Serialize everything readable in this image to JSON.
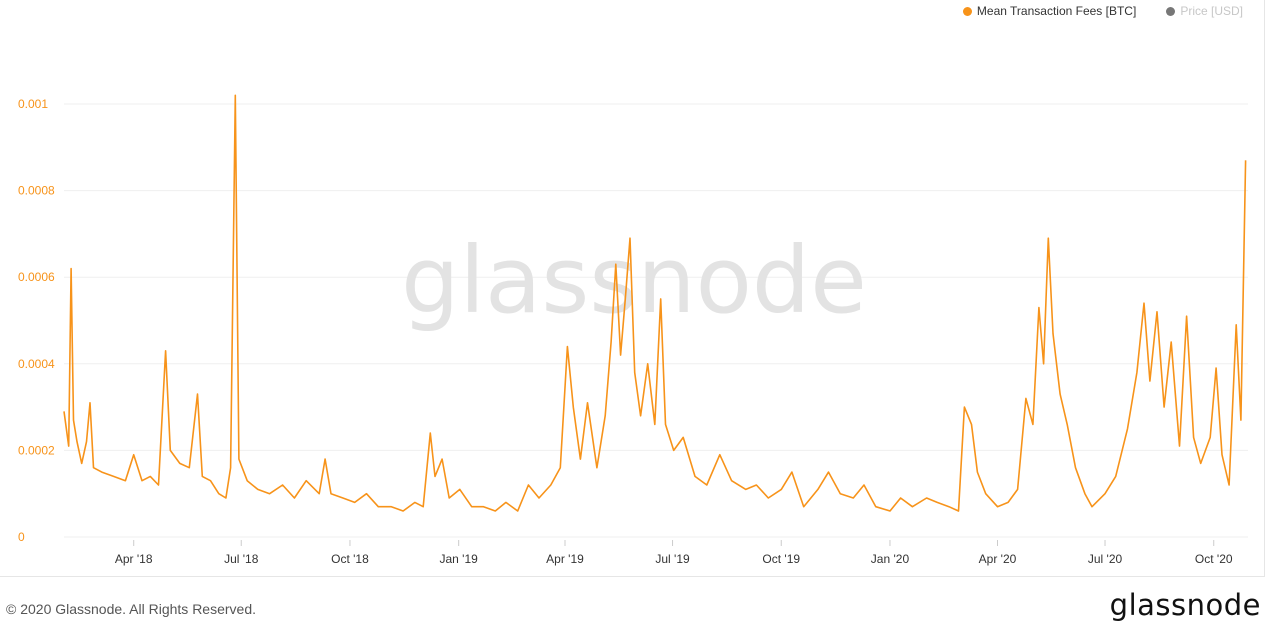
{
  "legend": [
    {
      "label": "Mean Transaction Fees [BTC]",
      "color": "#f7931a",
      "active": true
    },
    {
      "label": "Price [USD]",
      "color": "#777777",
      "active": false
    }
  ],
  "watermark": "glassnode",
  "footer": {
    "copyright": "© 2020 Glassnode. All Rights Reserved.",
    "logo": "glassnode"
  },
  "chart_data": {
    "type": "line",
    "y_ticks": [
      "0",
      "0.0002",
      "0.0004",
      "0.0006",
      "0.0008",
      "0.001"
    ],
    "x_ticks": [
      "Apr '18",
      "Jul '18",
      "Oct '18",
      "Jan '19",
      "Apr '19",
      "Jul '19",
      "Oct '19",
      "Jan '20",
      "Apr '20",
      "Jul '20",
      "Oct '20"
    ],
    "ylim": [
      0,
      0.00105
    ],
    "xlim": [
      "2018-02-01",
      "2020-10-30"
    ],
    "grid": true,
    "legend_position": "top-right",
    "series": [
      {
        "name": "Mean Transaction Fees [BTC]",
        "color": "#f7931a",
        "points": [
          [
            "2018-02-01",
            0.00029
          ],
          [
            "2018-02-05",
            0.00021
          ],
          [
            "2018-02-07",
            0.00062
          ],
          [
            "2018-02-09",
            0.00027
          ],
          [
            "2018-02-12",
            0.00022
          ],
          [
            "2018-02-16",
            0.00017
          ],
          [
            "2018-02-20",
            0.00022
          ],
          [
            "2018-02-23",
            0.00031
          ],
          [
            "2018-02-26",
            0.00016
          ],
          [
            "2018-03-05",
            0.00015
          ],
          [
            "2018-03-15",
            0.00014
          ],
          [
            "2018-03-25",
            0.00013
          ],
          [
            "2018-04-01",
            0.00019
          ],
          [
            "2018-04-08",
            0.00013
          ],
          [
            "2018-04-15",
            0.00014
          ],
          [
            "2018-04-22",
            0.00012
          ],
          [
            "2018-04-28",
            0.00043
          ],
          [
            "2018-05-02",
            0.0002
          ],
          [
            "2018-05-10",
            0.00017
          ],
          [
            "2018-05-18",
            0.00016
          ],
          [
            "2018-05-25",
            0.00033
          ],
          [
            "2018-05-29",
            0.00014
          ],
          [
            "2018-06-05",
            0.00013
          ],
          [
            "2018-06-12",
            0.0001
          ],
          [
            "2018-06-18",
            9e-05
          ],
          [
            "2018-06-22",
            0.00016
          ],
          [
            "2018-06-26",
            0.00102
          ],
          [
            "2018-06-29",
            0.00018
          ],
          [
            "2018-07-06",
            0.00013
          ],
          [
            "2018-07-15",
            0.00011
          ],
          [
            "2018-07-25",
            0.0001
          ],
          [
            "2018-08-05",
            0.00012
          ],
          [
            "2018-08-15",
            9e-05
          ],
          [
            "2018-08-25",
            0.00013
          ],
          [
            "2018-09-05",
            0.0001
          ],
          [
            "2018-09-10",
            0.00018
          ],
          [
            "2018-09-15",
            0.0001
          ],
          [
            "2018-09-25",
            9e-05
          ],
          [
            "2018-10-05",
            8e-05
          ],
          [
            "2018-10-15",
            0.0001
          ],
          [
            "2018-10-25",
            7e-05
          ],
          [
            "2018-11-05",
            7e-05
          ],
          [
            "2018-11-15",
            6e-05
          ],
          [
            "2018-11-25",
            8e-05
          ],
          [
            "2018-12-02",
            7e-05
          ],
          [
            "2018-12-08",
            0.00024
          ],
          [
            "2018-12-12",
            0.00014
          ],
          [
            "2018-12-18",
            0.00018
          ],
          [
            "2018-12-24",
            9e-05
          ],
          [
            "2019-01-02",
            0.00011
          ],
          [
            "2019-01-12",
            7e-05
          ],
          [
            "2019-01-22",
            7e-05
          ],
          [
            "2019-02-01",
            6e-05
          ],
          [
            "2019-02-10",
            8e-05
          ],
          [
            "2019-02-20",
            6e-05
          ],
          [
            "2019-03-01",
            0.00012
          ],
          [
            "2019-03-10",
            9e-05
          ],
          [
            "2019-03-20",
            0.00012
          ],
          [
            "2019-03-28",
            0.00016
          ],
          [
            "2019-04-03",
            0.00044
          ],
          [
            "2019-04-08",
            0.0003
          ],
          [
            "2019-04-14",
            0.00018
          ],
          [
            "2019-04-20",
            0.00031
          ],
          [
            "2019-04-28",
            0.00016
          ],
          [
            "2019-05-05",
            0.00028
          ],
          [
            "2019-05-10",
            0.00045
          ],
          [
            "2019-05-14",
            0.00063
          ],
          [
            "2019-05-18",
            0.00042
          ],
          [
            "2019-05-22",
            0.00055
          ],
          [
            "2019-05-26",
            0.00069
          ],
          [
            "2019-05-30",
            0.00038
          ],
          [
            "2019-06-04",
            0.00028
          ],
          [
            "2019-06-10",
            0.0004
          ],
          [
            "2019-06-16",
            0.00026
          ],
          [
            "2019-06-21",
            0.00055
          ],
          [
            "2019-06-25",
            0.00026
          ],
          [
            "2019-07-02",
            0.0002
          ],
          [
            "2019-07-10",
            0.00023
          ],
          [
            "2019-07-20",
            0.00014
          ],
          [
            "2019-07-30",
            0.00012
          ],
          [
            "2019-08-10",
            0.00019
          ],
          [
            "2019-08-20",
            0.00013
          ],
          [
            "2019-09-01",
            0.00011
          ],
          [
            "2019-09-10",
            0.00012
          ],
          [
            "2019-09-20",
            9e-05
          ],
          [
            "2019-10-01",
            0.00011
          ],
          [
            "2019-10-10",
            0.00015
          ],
          [
            "2019-10-20",
            7e-05
          ],
          [
            "2019-11-01",
            0.00011
          ],
          [
            "2019-11-10",
            0.00015
          ],
          [
            "2019-11-20",
            0.0001
          ],
          [
            "2019-12-01",
            9e-05
          ],
          [
            "2019-12-10",
            0.00012
          ],
          [
            "2019-12-20",
            7e-05
          ],
          [
            "2020-01-01",
            6e-05
          ],
          [
            "2020-01-10",
            9e-05
          ],
          [
            "2020-01-20",
            7e-05
          ],
          [
            "2020-02-01",
            9e-05
          ],
          [
            "2020-02-10",
            8e-05
          ],
          [
            "2020-02-20",
            7e-05
          ],
          [
            "2020-02-28",
            6e-05
          ],
          [
            "2020-03-04",
            0.0003
          ],
          [
            "2020-03-10",
            0.00026
          ],
          [
            "2020-03-15",
            0.00015
          ],
          [
            "2020-03-22",
            0.0001
          ],
          [
            "2020-04-01",
            7e-05
          ],
          [
            "2020-04-10",
            8e-05
          ],
          [
            "2020-04-18",
            0.00011
          ],
          [
            "2020-04-25",
            0.00032
          ],
          [
            "2020-05-01",
            0.00026
          ],
          [
            "2020-05-06",
            0.00053
          ],
          [
            "2020-05-10",
            0.0004
          ],
          [
            "2020-05-14",
            0.00069
          ],
          [
            "2020-05-18",
            0.00047
          ],
          [
            "2020-05-24",
            0.00033
          ],
          [
            "2020-05-30",
            0.00026
          ],
          [
            "2020-06-06",
            0.00016
          ],
          [
            "2020-06-14",
            0.0001
          ],
          [
            "2020-06-20",
            7e-05
          ],
          [
            "2020-07-01",
            0.0001
          ],
          [
            "2020-07-10",
            0.00014
          ],
          [
            "2020-07-20",
            0.00025
          ],
          [
            "2020-07-28",
            0.00038
          ],
          [
            "2020-08-03",
            0.00054
          ],
          [
            "2020-08-08",
            0.00036
          ],
          [
            "2020-08-14",
            0.00052
          ],
          [
            "2020-08-20",
            0.0003
          ],
          [
            "2020-08-26",
            0.00045
          ],
          [
            "2020-09-02",
            0.00021
          ],
          [
            "2020-09-08",
            0.00051
          ],
          [
            "2020-09-14",
            0.00023
          ],
          [
            "2020-09-20",
            0.00017
          ],
          [
            "2020-09-28",
            0.00023
          ],
          [
            "2020-10-03",
            0.00039
          ],
          [
            "2020-10-08",
            0.00019
          ],
          [
            "2020-10-14",
            0.00012
          ],
          [
            "2020-10-20",
            0.00049
          ],
          [
            "2020-10-24",
            0.00027
          ],
          [
            "2020-10-28",
            0.00087
          ]
        ]
      }
    ]
  }
}
